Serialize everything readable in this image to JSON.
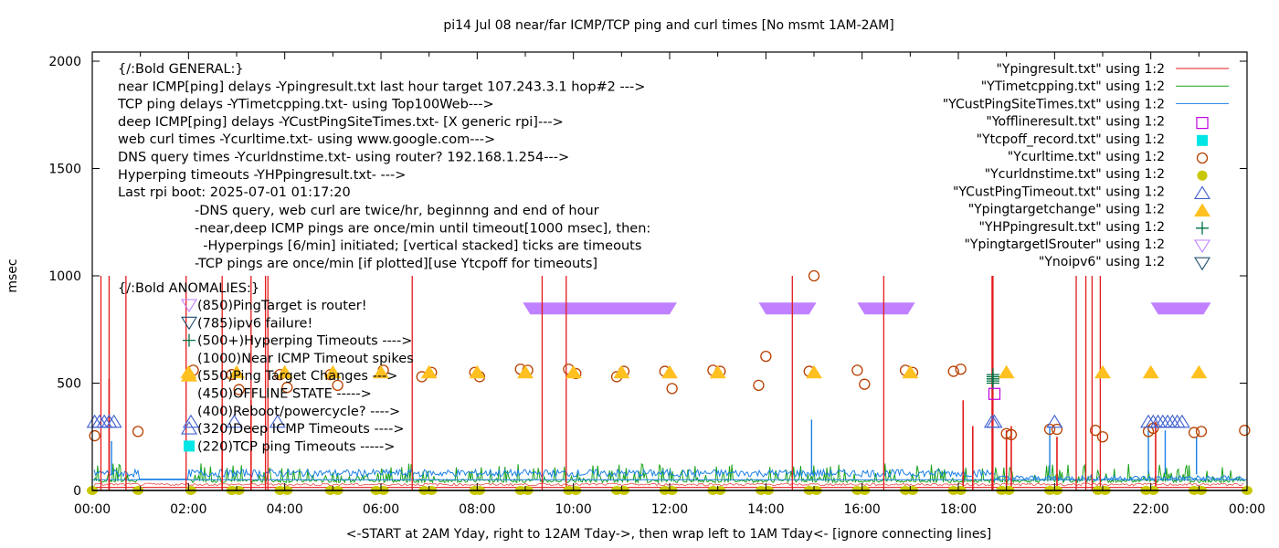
{
  "chart_data": {
    "type": "line",
    "title": "pi14 Jul 08  near/far ICMP/TCP ping and curl times [No msmt 1AM-2AM]",
    "xlabel": "<-START at 2AM Yday, right to 12AM Tday->, then wrap left to 1AM Tday<- [ignore connecting lines]",
    "ylabel": "msec",
    "xlim_hours": [
      0,
      24
    ],
    "ylim": [
      0,
      2000
    ],
    "grid": false,
    "legend_position": "top-right",
    "x_ticks": [
      "00:00",
      "02:00",
      "04:00",
      "06:00",
      "08:00",
      "10:00",
      "12:00",
      "14:00",
      "16:00",
      "18:00",
      "20:00",
      "22:00",
      "00:00"
    ],
    "y_ticks": [
      "0",
      "500",
      "1000",
      "1500",
      "2000"
    ],
    "annotations_general": [
      "{/:Bold GENERAL:}",
      "near ICMP[ping] delays -Ypingresult.txt last hour target 107.243.3.1 hop#2 --->",
      "TCP ping delays -YTimetcpping.txt- using Top100Web--->",
      "deep ICMP[ping] delays -YCustPingSiteTimes.txt- [X generic rpi]--->",
      "web curl times -Ycurltime.txt- using www.google.com--->",
      "DNS query times -Ycurldnstime.txt- using router? 192.168.1.254--->",
      "Hyperping timeouts -YHPpingresult.txt- --->",
      "Last rpi boot: 2025-07-01 01:17:20"
    ],
    "annotations_notes": [
      "-DNS query, web curl are twice/hr, beginnng and end of hour",
      "-near,deep ICMP pings are once/min until timeout[1000 msec], then:",
      " -Hyperpings [6/min] initiated; [vertical stacked] ticks are timeouts",
      "-TCP pings are once/min [if plotted][use Ytcpoff for timeouts]"
    ],
    "annotations_anomalies_title": "{/:Bold ANOMALIES:}",
    "annotations_anomalies": [
      {
        "marker": "tri-down-lavender",
        "text": "(850)PingTarget is router!"
      },
      {
        "marker": "tri-down-navy",
        "text": "(785)ipv6 failure!"
      },
      {
        "marker": "plus-green",
        "text": "(500+)Hyperping Timeouts ---->"
      },
      {
        "marker": "none",
        "text": "(1000)Near ICMP Timeout spikes"
      },
      {
        "marker": "tri-up-orange",
        "text": "(550)Ping Target Changes --->"
      },
      {
        "marker": "none",
        "text": "(450)OFFLINE STATE ----->"
      },
      {
        "marker": "none",
        "text": "(400)Reboot/powercycle? ---->"
      },
      {
        "marker": "tri-up-blue",
        "text": "(320)Deep ICMP Timeouts ---->"
      },
      {
        "marker": "square-cyan",
        "text": "(220)TCP ping Timeouts ----->"
      }
    ],
    "series": [
      {
        "name": "\"Ypingresult.txt\" using 1:2",
        "style": "line",
        "color": "#e41a1c",
        "baseline": 22,
        "spikes_1000": [
          0.18,
          0.35,
          0.7,
          1.95,
          2.7,
          3.3,
          3.6,
          3.65,
          6.65,
          9.35,
          9.85,
          14.55,
          16.45,
          18.7,
          18.72,
          20.45,
          20.65,
          20.78,
          20.95
        ],
        "spikes_mid": [
          [
            0.35,
            520
          ],
          [
            2.7,
            400
          ],
          [
            3.3,
            420
          ],
          [
            18.1,
            420
          ],
          [
            18.3,
            300
          ],
          [
            19.0,
            280
          ],
          [
            19.1,
            300
          ],
          [
            20.05,
            250
          ],
          [
            22.1,
            320
          ]
        ]
      },
      {
        "name": "\"YTimetcpping.txt\" using 1:2",
        "style": "line",
        "color": "#1aa31a",
        "baseline": 55,
        "noise": 45
      },
      {
        "name": "\"YCustPingSiteTimes.txt\" using 1:2",
        "style": "line",
        "color": "#1a80e6",
        "baseline": 75,
        "noise": 35,
        "spikes": [
          [
            0.4,
            230
          ],
          [
            14.95,
            330
          ],
          [
            18.75,
            80
          ],
          [
            19.9,
            300
          ],
          [
            21.95,
            280
          ],
          [
            22.3,
            280
          ],
          [
            22.95,
            250
          ]
        ]
      },
      {
        "name": "\"Yofflineresult.txt\" using 1:2",
        "style": "open-square",
        "color": "#c000e0",
        "points": [
          [
            18.75,
            450
          ]
        ]
      },
      {
        "name": "\"Ytcpoff_record.txt\" using 1:2",
        "style": "filled-square",
        "color": "#00e5e5",
        "points": []
      },
      {
        "name": "\"Ycurltime.txt\" using 1:2",
        "style": "open-circle",
        "color": "#b84000",
        "points": [
          [
            0.05,
            255
          ],
          [
            0.95,
            275
          ],
          [
            2.1,
            560
          ],
          [
            2.9,
            540
          ],
          [
            3.05,
            470
          ],
          [
            3.9,
            540
          ],
          [
            4.05,
            480
          ],
          [
            4.95,
            540
          ],
          [
            5.1,
            490
          ],
          [
            6.05,
            560
          ],
          [
            6.85,
            530
          ],
          [
            7.05,
            550
          ],
          [
            7.95,
            550
          ],
          [
            8.05,
            530
          ],
          [
            8.9,
            565
          ],
          [
            9.05,
            560
          ],
          [
            9.9,
            565
          ],
          [
            10.05,
            545
          ],
          [
            10.9,
            530
          ],
          [
            11.05,
            555
          ],
          [
            11.9,
            555
          ],
          [
            12.05,
            475
          ],
          [
            12.9,
            560
          ],
          [
            13.05,
            555
          ],
          [
            13.85,
            490
          ],
          [
            14.0,
            625
          ],
          [
            14.9,
            555
          ],
          [
            15.0,
            1000
          ],
          [
            15.9,
            560
          ],
          [
            16.05,
            495
          ],
          [
            16.9,
            560
          ],
          [
            17.05,
            550
          ],
          [
            17.9,
            555
          ],
          [
            18.05,
            565
          ],
          [
            19.0,
            265
          ],
          [
            19.1,
            260
          ],
          [
            19.9,
            285
          ],
          [
            20.05,
            285
          ],
          [
            20.85,
            280
          ],
          [
            21.0,
            250
          ],
          [
            21.95,
            275
          ],
          [
            22.05,
            290
          ],
          [
            22.9,
            270
          ],
          [
            23.05,
            275
          ],
          [
            23.95,
            280
          ]
        ]
      },
      {
        "name": "\"Ycurldnstime.txt\" using 1:2",
        "style": "filled-circle",
        "color": "#c8c800",
        "points_hours": [
          0,
          0.95,
          2.05,
          2.9,
          3.05,
          3.9,
          4.05,
          4.95,
          5.1,
          5.9,
          6.05,
          6.9,
          7.05,
          7.95,
          8.05,
          8.9,
          9.05,
          9.9,
          10.05,
          10.9,
          11.05,
          11.9,
          12.05,
          12.9,
          13.05,
          13.9,
          14.05,
          14.9,
          15.05,
          15.9,
          16.05,
          16.9,
          17.05,
          17.9,
          18.05,
          18.9,
          19.05,
          19.9,
          20.05,
          20.9,
          21.05,
          21.9,
          22.05,
          22.9,
          23.05,
          24.0
        ],
        "value": 0
      },
      {
        "name": "\"YCustPingTimeout.txt\" using 1:2",
        "style": "open-triangle",
        "color": "#4060d0",
        "points": [
          [
            0.05,
            320
          ],
          [
            0.15,
            320
          ],
          [
            0.25,
            320
          ],
          [
            0.35,
            320
          ],
          [
            0.45,
            320
          ],
          [
            2.05,
            320
          ],
          [
            2.95,
            320
          ],
          [
            3.85,
            320
          ],
          [
            18.7,
            320
          ],
          [
            18.75,
            320
          ],
          [
            20.0,
            320
          ],
          [
            21.95,
            320
          ],
          [
            22.05,
            320
          ],
          [
            22.15,
            320
          ],
          [
            22.25,
            320
          ],
          [
            22.35,
            320
          ],
          [
            22.45,
            320
          ],
          [
            22.55,
            320
          ],
          [
            22.65,
            320
          ]
        ]
      },
      {
        "name": "\"Ypingtargetchange\" using 1:2",
        "style": "filled-triangle",
        "color": "#ffc020",
        "points_hours": [
          2.0,
          3.0,
          4.0,
          5.0,
          6.0,
          7.0,
          8.0,
          9.0,
          10.0,
          11.0,
          12.0,
          13.0,
          15.0,
          17.0,
          19.0,
          21.0,
          22.0,
          23.0
        ],
        "value": 550
      },
      {
        "name": "\"YHPpingresult.txt\" using 1:2",
        "style": "plus",
        "color": "#007040",
        "points": [
          [
            18.72,
            500
          ],
          [
            18.72,
            510
          ],
          [
            18.72,
            520
          ],
          [
            18.72,
            530
          ],
          [
            18.72,
            540
          ]
        ]
      },
      {
        "name": "\"YpingtargetISrouter\" using 1:2",
        "style": "open-triangle-down",
        "color": "#c080ff",
        "ranges_hours": [
          [
            8.95,
            12.15
          ],
          [
            13.85,
            15.05
          ],
          [
            15.9,
            17.1
          ],
          [
            22.0,
            23.25
          ]
        ],
        "value": 850
      },
      {
        "name": "\"Ynoipv6\" using 1:2",
        "style": "open-triangle-down",
        "color": "#205070",
        "points": []
      }
    ]
  }
}
